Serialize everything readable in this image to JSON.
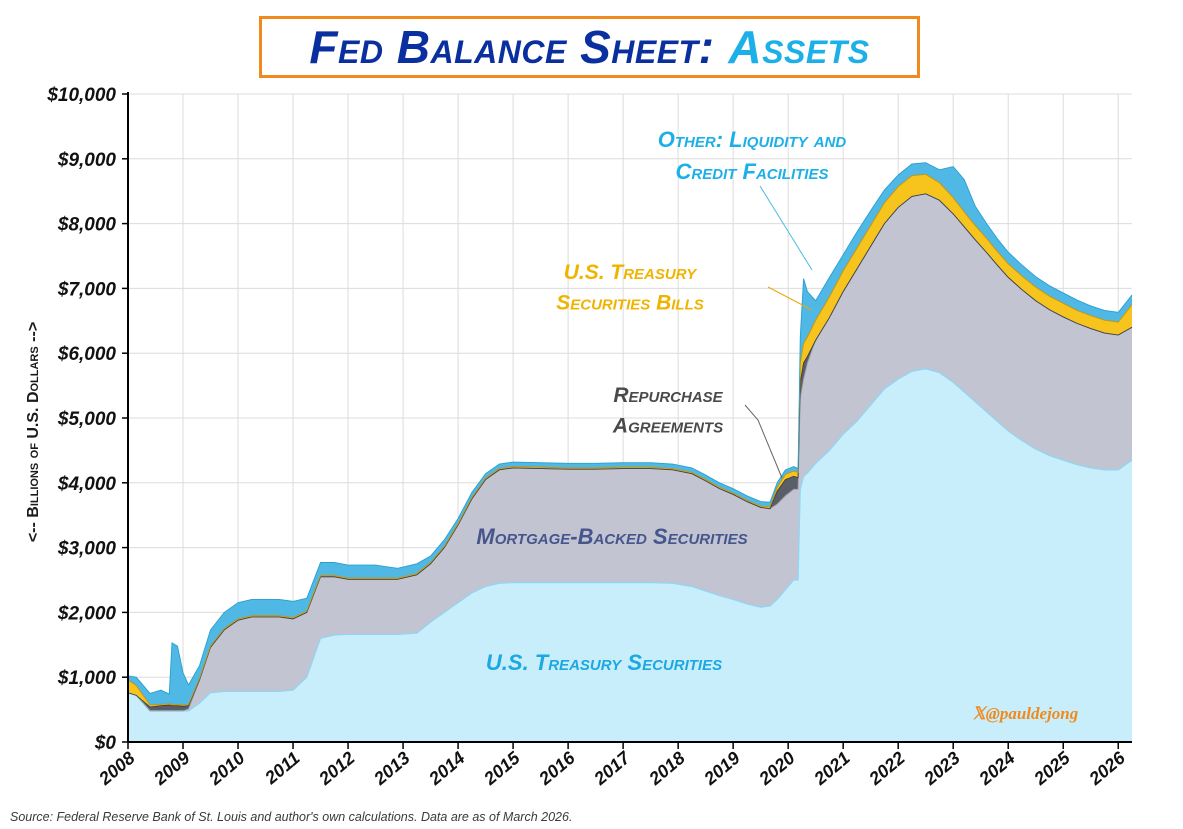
{
  "title": {
    "part1": "Fed Balance Sheet:",
    "part2": "Assets"
  },
  "source": "Source: Federal Reserve Bank of St. Louis and author's own calculations. Data are as of March 2026.",
  "handle": "𝕏@pauldejong",
  "colors": {
    "treasury": "#c8eefc",
    "treasury_edge": "#8fd6f3",
    "mbs": "#c2c4d1",
    "repo": "#5a5e66",
    "bills": "#f7c31d",
    "other": "#4fb8e4",
    "grid": "#dcdcdc"
  },
  "chart_data": {
    "type": "area",
    "stacked": true,
    "title": "Fed Balance Sheet: Assets",
    "xlabel": "",
    "ylabel": "<-- Billions of U.S. Dollars -->",
    "xlim": [
      2008,
      2026.25
    ],
    "ylim": [
      0,
      10000
    ],
    "grid": true,
    "x_ticks": [
      "2008",
      "2009",
      "2010",
      "2011",
      "2012",
      "2013",
      "2014",
      "2015",
      "2016",
      "2017",
      "2018",
      "2019",
      "2020",
      "2021",
      "2022",
      "2023",
      "2024",
      "2025",
      "2026"
    ],
    "y_ticks": [
      "$0",
      "$1,000",
      "$2,000",
      "$3,000",
      "$4,000",
      "$5,000",
      "$6,000",
      "$7,000",
      "$8,000",
      "$9,000",
      "$10,000"
    ],
    "x": [
      2008.0,
      2008.15,
      2008.4,
      2008.6,
      2008.75,
      2008.8,
      2008.9,
      2009.0,
      2009.1,
      2009.3,
      2009.5,
      2009.75,
      2010.0,
      2010.25,
      2010.5,
      2010.75,
      2011.0,
      2011.25,
      2011.5,
      2011.75,
      2012.0,
      2012.5,
      2012.9,
      2013.25,
      2013.5,
      2013.75,
      2014.0,
      2014.25,
      2014.5,
      2014.75,
      2015.0,
      2015.5,
      2016.0,
      2016.5,
      2017.0,
      2017.5,
      2017.9,
      2018.25,
      2018.5,
      2018.75,
      2019.0,
      2019.25,
      2019.5,
      2019.67,
      2019.8,
      2019.95,
      2020.1,
      2020.18,
      2020.22,
      2020.28,
      2020.35,
      2020.5,
      2020.75,
      2021.0,
      2021.25,
      2021.5,
      2021.75,
      2022.0,
      2022.25,
      2022.5,
      2022.75,
      2023.0,
      2023.2,
      2023.4,
      2023.6,
      2023.8,
      2024.0,
      2024.25,
      2024.5,
      2024.75,
      2025.0,
      2025.25,
      2025.5,
      2025.75,
      2026.0,
      2026.25
    ],
    "series": [
      {
        "name": "U.S. Treasury Securities",
        "values": [
          760,
          720,
          480,
          480,
          480,
          480,
          480,
          480,
          480,
          600,
          760,
          780,
          780,
          780,
          780,
          780,
          800,
          1000,
          1600,
          1650,
          1660,
          1660,
          1660,
          1680,
          1850,
          2000,
          2150,
          2300,
          2400,
          2450,
          2460,
          2460,
          2460,
          2460,
          2460,
          2460,
          2450,
          2400,
          2330,
          2260,
          2200,
          2130,
          2080,
          2100,
          2200,
          2350,
          2500,
          2500,
          3900,
          4100,
          4150,
          4300,
          4500,
          4750,
          4950,
          5200,
          5450,
          5600,
          5720,
          5760,
          5700,
          5550,
          5400,
          5250,
          5100,
          4950,
          4800,
          4650,
          4520,
          4420,
          4350,
          4280,
          4230,
          4200,
          4200,
          4350
        ]
      },
      {
        "name": "Mortgage-Backed Securities",
        "values": [
          0,
          0,
          0,
          0,
          0,
          0,
          0,
          0,
          30,
          350,
          700,
          950,
          1100,
          1150,
          1150,
          1150,
          1100,
          1000,
          950,
          900,
          850,
          850,
          850,
          900,
          900,
          1000,
          1200,
          1450,
          1650,
          1750,
          1770,
          1760,
          1750,
          1750,
          1760,
          1760,
          1750,
          1740,
          1700,
          1650,
          1620,
          1580,
          1540,
          1500,
          1470,
          1450,
          1400,
          1400,
          1400,
          1500,
          1700,
          1900,
          2050,
          2200,
          2350,
          2450,
          2550,
          2650,
          2700,
          2700,
          2660,
          2600,
          2550,
          2500,
          2460,
          2410,
          2370,
          2330,
          2290,
          2250,
          2210,
          2180,
          2150,
          2110,
          2080,
          2050
        ]
      },
      {
        "name": "Repurchase Agreements",
        "values": [
          0,
          0,
          60,
          80,
          90,
          80,
          80,
          70,
          50,
          10,
          0,
          0,
          0,
          0,
          0,
          0,
          0,
          0,
          0,
          0,
          0,
          0,
          0,
          0,
          0,
          0,
          0,
          0,
          0,
          0,
          0,
          0,
          0,
          0,
          0,
          0,
          0,
          0,
          0,
          0,
          0,
          0,
          0,
          0,
          200,
          250,
          200,
          180,
          250,
          250,
          100,
          0,
          0,
          0,
          0,
          0,
          0,
          0,
          0,
          0,
          0,
          0,
          0,
          0,
          0,
          0,
          0,
          0,
          0,
          0,
          0,
          0,
          0,
          0,
          0,
          0
        ]
      },
      {
        "name": "U.S. Treasury Securities Bills",
        "values": [
          200,
          150,
          30,
          20,
          20,
          20,
          20,
          20,
          20,
          20,
          20,
          20,
          20,
          20,
          20,
          20,
          20,
          20,
          20,
          20,
          20,
          20,
          20,
          20,
          20,
          20,
          20,
          20,
          20,
          20,
          20,
          20,
          20,
          20,
          20,
          20,
          20,
          20,
          20,
          20,
          20,
          20,
          20,
          30,
          60,
          80,
          80,
          80,
          300,
          300,
          300,
          310,
          320,
          320,
          320,
          320,
          320,
          320,
          320,
          300,
          270,
          250,
          230,
          220,
          220,
          210,
          210,
          210,
          210,
          210,
          210,
          200,
          200,
          200,
          200,
          350
        ]
      },
      {
        "name": "Other: Liquidity and Credit Facilities",
        "values": [
          60,
          130,
          180,
          220,
          150,
          950,
          900,
          500,
          300,
          200,
          250,
          250,
          250,
          250,
          250,
          250,
          250,
          200,
          200,
          200,
          200,
          200,
          150,
          150,
          100,
          100,
          80,
          80,
          70,
          70,
          70,
          70,
          70,
          70,
          70,
          70,
          70,
          70,
          70,
          70,
          70,
          70,
          70,
          70,
          70,
          70,
          70,
          60,
          400,
          1000,
          700,
          300,
          300,
          250,
          250,
          230,
          200,
          180,
          180,
          180,
          200,
          480,
          500,
          300,
          230,
          200,
          180,
          170,
          160,
          160,
          160,
          160,
          150,
          150,
          150,
          150
        ]
      }
    ],
    "annotations": [
      {
        "series": "Other: Liquidity and Credit Facilities",
        "line1": "Other: Liquidity and",
        "line2": "Credit Facilities"
      },
      {
        "series": "U.S. Treasury Securities Bills",
        "line1": "U.S. Treasury",
        "line2": "Securities Bills"
      },
      {
        "series": "Repurchase Agreements",
        "line1": "Repurchase",
        "line2": "Agreements"
      },
      {
        "series": "Mortgage-Backed Securities",
        "line1": "Mortgage-Backed Securities"
      },
      {
        "series": "U.S. Treasury Securities",
        "line1": "U.S. Treasury Securities"
      }
    ]
  }
}
